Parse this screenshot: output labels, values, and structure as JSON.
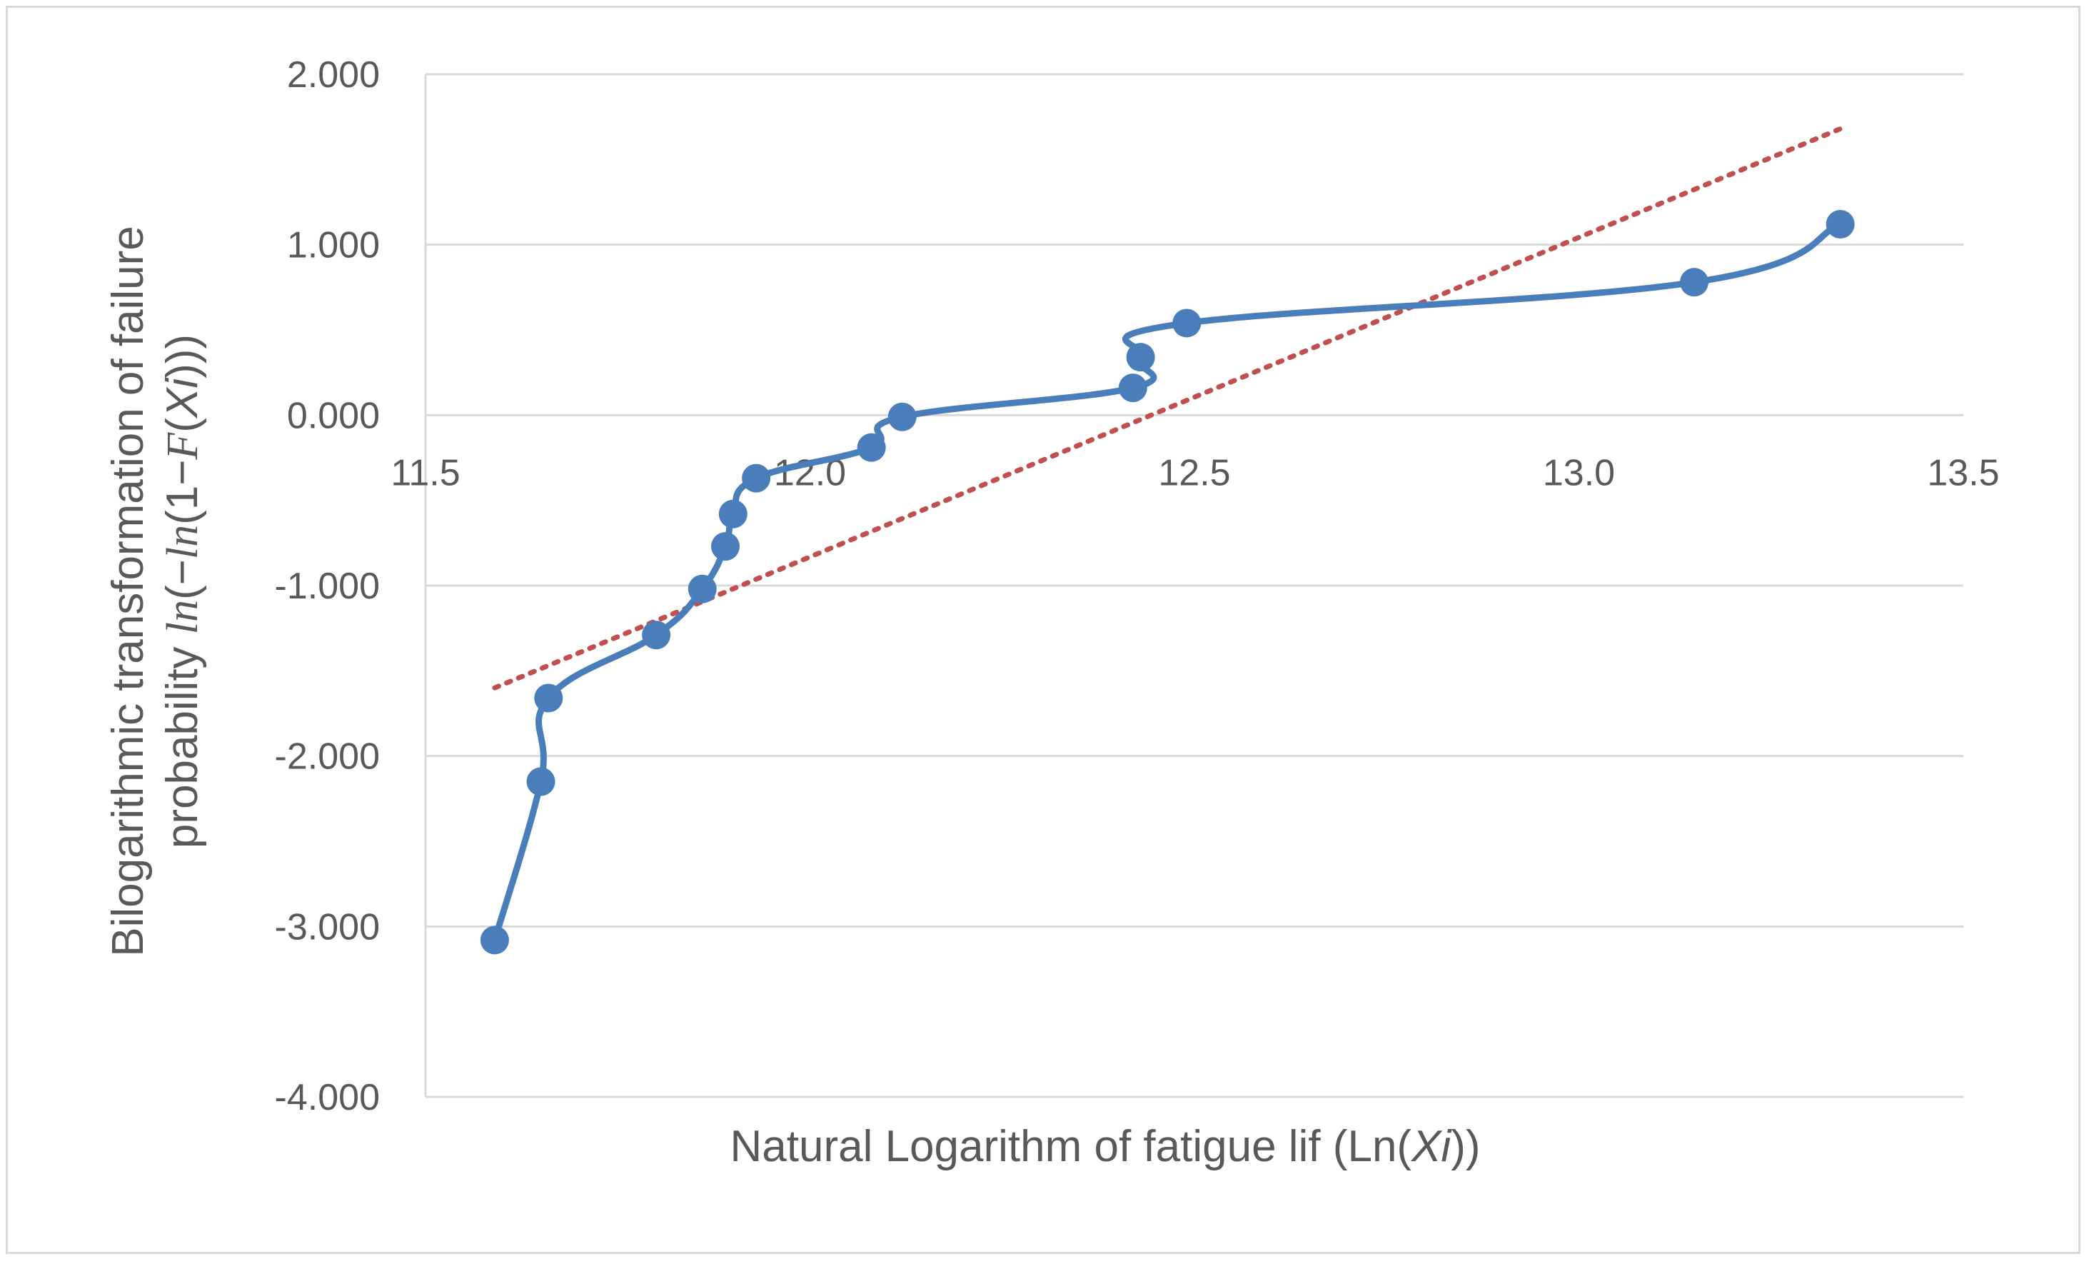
{
  "chart_data": {
    "type": "scatter",
    "title": "",
    "xlabel": {
      "prefix": "Natural Logarithm of fatigue lif (Ln(",
      "var": "Xi",
      "suffix": "))"
    },
    "ylabel": {
      "line1": "Bilogarithmic transformation of failure",
      "line2_prefix": "probability ",
      "ln1": "ln",
      "mid1": "(−",
      "ln2": "ln",
      "mid2": "(1−",
      "F": "F",
      "open": "(",
      "var": "Xi",
      "close": ")))"
    },
    "xlim": [
      11.5,
      13.5
    ],
    "ylim": [
      -4,
      2
    ],
    "x_ticks": [
      "11.5",
      "12.0",
      "12.5",
      "13.0",
      "13.5"
    ],
    "y_ticks": [
      "2.000",
      "1.000",
      "0.000",
      "-1.000",
      "-2.000",
      "-3.000",
      "-4.000"
    ],
    "grid": true,
    "legend": "none",
    "series": [
      {
        "style": "smoothed line with markers",
        "color": "#4a7ebb",
        "points": [
          [
            11.59,
            -3.08
          ],
          [
            11.65,
            -2.15
          ],
          [
            11.66,
            -1.66
          ],
          [
            11.8,
            -1.29
          ],
          [
            11.86,
            -1.02
          ],
          [
            11.89,
            -0.77
          ],
          [
            11.9,
            -0.58
          ],
          [
            11.93,
            -0.37
          ],
          [
            12.08,
            -0.19
          ],
          [
            12.12,
            -0.01
          ],
          [
            12.42,
            0.16
          ],
          [
            12.43,
            0.34
          ],
          [
            12.49,
            0.54
          ],
          [
            13.15,
            0.78
          ],
          [
            13.34,
            1.12
          ]
        ]
      },
      {
        "style": "dotted trendline",
        "color": "#c0504d",
        "points": [
          [
            11.59,
            -1.6
          ],
          [
            13.34,
            1.68
          ]
        ]
      }
    ]
  }
}
